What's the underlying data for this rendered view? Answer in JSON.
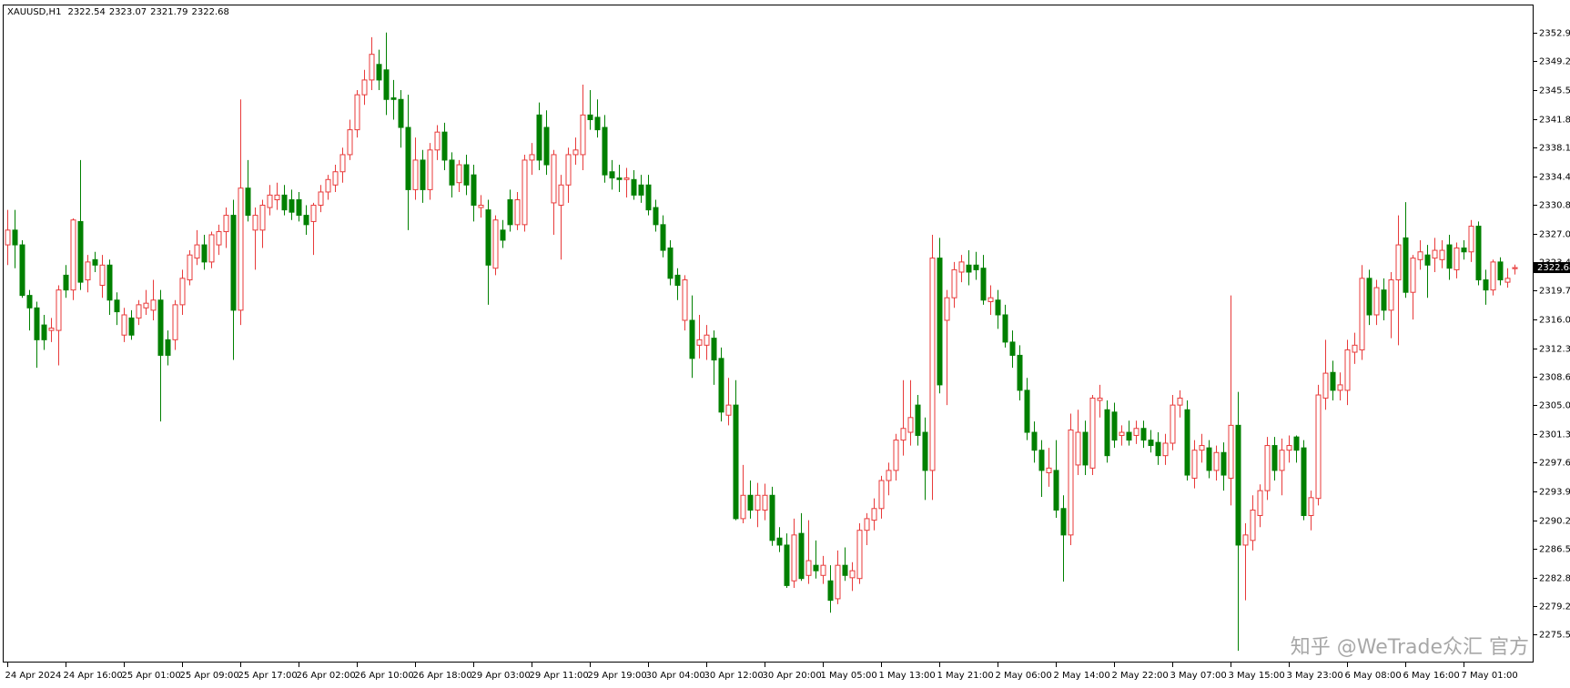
{
  "chart_data": {
    "type": "candlestick",
    "title": "XAUUSD,H1",
    "watermark": "知乎 @WeTrade众汇 官方",
    "up_color": "#e83a3a",
    "down_color": "#008000",
    "ylim": [
      2271.9,
      2356.5
    ],
    "yticks": [
      {
        "value": 2352.9,
        "label": "2352.90"
      },
      {
        "value": 2349.2,
        "label": "2349.20"
      },
      {
        "value": 2345.5,
        "label": "2345.50"
      },
      {
        "value": 2341.8,
        "label": "2341.80"
      },
      {
        "value": 2338.1,
        "label": "2338.10"
      },
      {
        "value": 2334.4,
        "label": "2334.40"
      },
      {
        "value": 2330.8,
        "label": "2330.80"
      },
      {
        "value": 2327.0,
        "label": "2327.00"
      },
      {
        "value": 2323.4,
        "label": "2323.40"
      },
      {
        "value": 2319.7,
        "label": "2319.70"
      },
      {
        "value": 2316.0,
        "label": "2316.00"
      },
      {
        "value": 2312.3,
        "label": "2312.30"
      },
      {
        "value": 2308.6,
        "label": "2308.60"
      },
      {
        "value": 2305.0,
        "label": "2305.00"
      },
      {
        "value": 2301.3,
        "label": "2301.30"
      },
      {
        "value": 2297.6,
        "label": "2297.60"
      },
      {
        "value": 2293.9,
        "label": "2293.90"
      },
      {
        "value": 2290.2,
        "label": "2290.20"
      },
      {
        "value": 2286.5,
        "label": "2286.50"
      },
      {
        "value": 2282.8,
        "label": "2282.80"
      },
      {
        "value": 2279.2,
        "label": "2279.20"
      },
      {
        "value": 2275.5,
        "label": "2275.50"
      }
    ],
    "categories": [
      "24 Apr 2024",
      null,
      null,
      null,
      null,
      null,
      null,
      null,
      "24 Apr 16:00",
      null,
      null,
      null,
      null,
      null,
      null,
      null,
      "25 Apr 01:00",
      null,
      null,
      null,
      null,
      null,
      null,
      null,
      "25 Apr 09:00",
      null,
      null,
      null,
      null,
      null,
      null,
      null,
      "25 Apr 17:00",
      null,
      null,
      null,
      null,
      null,
      null,
      null,
      "26 Apr 02:00",
      null,
      null,
      null,
      null,
      null,
      null,
      null,
      "26 Apr 10:00",
      null,
      null,
      null,
      null,
      null,
      null,
      null,
      "26 Apr 18:00",
      null,
      null,
      null,
      null,
      null,
      null,
      null,
      "29 Apr 03:00",
      null,
      null,
      null,
      null,
      null,
      null,
      null,
      "29 Apr 11:00",
      null,
      null,
      null,
      null,
      null,
      null,
      null,
      "29 Apr 19:00",
      null,
      null,
      null,
      null,
      null,
      null,
      null,
      "30 Apr 04:00",
      null,
      null,
      null,
      null,
      null,
      null,
      null,
      "30 Apr 12:00",
      null,
      null,
      null,
      null,
      null,
      null,
      null,
      "30 Apr 20:00",
      null,
      null,
      null,
      null,
      null,
      null,
      null,
      "1 May 05:00",
      null,
      null,
      null,
      null,
      null,
      null,
      null,
      "1 May 13:00",
      null,
      null,
      null,
      null,
      null,
      null,
      null,
      "1 May 21:00",
      null,
      null,
      null,
      null,
      null,
      null,
      null,
      "2 May 06:00",
      null,
      null,
      null,
      null,
      null,
      null,
      null,
      "2 May 14:00",
      null,
      null,
      null,
      null,
      null,
      null,
      null,
      "2 May 22:00",
      null,
      null,
      null,
      null,
      null,
      null,
      null,
      "3 May 07:00",
      null,
      null,
      null,
      null,
      null,
      null,
      null,
      "3 May 15:00",
      null,
      null,
      null,
      null,
      null,
      null,
      null,
      "3 May 23:00",
      null,
      null,
      null,
      null,
      null,
      null,
      null,
      "6 May 08:00",
      null,
      null,
      null,
      null,
      null,
      null,
      null,
      "6 May 16:00",
      null,
      null,
      null,
      null,
      null,
      null,
      null,
      "7 May 01:00",
      null,
      null,
      null,
      null,
      null,
      null,
      null
    ],
    "open": [
      2325.6,
      2327.5,
      2325.6,
      2319.1,
      2317.5,
      2315.3,
      2314.6,
      2314.6,
      2321.7,
      2319.8,
      2328.6,
      2321.1,
      2323.7,
      2320.4,
      2323.0,
      2318.5,
      2314.0,
      2316.2,
      2316.2,
      2317.5,
      2317.2,
      2318.5,
      2313.4,
      2313.4,
      2317.9,
      2321.1,
      2323.9,
      2325.6,
      2323.4,
      2325.6,
      2327.3,
      2329.4,
      2317.2,
      2332.9,
      2327.5,
      2327.5,
      2330.4,
      2331.4,
      2332.0,
      2331.4,
      2331.4,
      2329.4,
      2328.6,
      2330.7,
      2332.4,
      2333.3,
      2335.0,
      2337.2,
      2340.4,
      2344.9,
      2346.8,
      2348.8,
      2348.1,
      2344.5,
      2344.3,
      2340.7,
      2332.7,
      2336.5,
      2332.7,
      2337.8,
      2340.1,
      2336.5,
      2333.6,
      2335.9,
      2334.6,
      2330.4,
      2330.1,
      2322.6,
      2327.5,
      2331.4,
      2328.2,
      2328.2,
      2336.5,
      2342.3,
      2340.7,
      2331.0,
      2330.7,
      2333.3,
      2337.2,
      2337.2,
      2342.3,
      2342.0,
      2340.7,
      2335.0,
      2334.2,
      2334.0,
      2334.0,
      2333.3,
      2333.3,
      2330.4,
      2328.2,
      2325.2,
      2321.7,
      2315.9,
      2315.9,
      2312.7,
      2312.7,
      2313.6,
      2311.0,
      2303.7,
      2305.0,
      2290.4,
      2293.4,
      2291.5,
      2291.5,
      2293.4,
      2287.9,
      2287.0,
      2282.4,
      2288.5,
      2283.1,
      2284.4,
      2283.1,
      2282.4,
      2280.1,
      2284.4,
      2282.8,
      2282.7,
      2288.9,
      2290.2,
      2291.7,
      2295.3,
      2296.6,
      2300.5,
      2301.5,
      2305.0,
      2301.5,
      2296.6,
      2323.9,
      2315.9,
      2318.8,
      2322.1,
      2323.0,
      2323.0,
      2322.6,
      2318.3,
      2318.5,
      2316.6,
      2313.1,
      2311.4,
      2306.9,
      2301.5,
      2299.2,
      2296.3,
      2296.6,
      2291.7,
      2288.3,
      2297.3,
      2301.5,
      2296.9,
      2305.6,
      2304.4,
      2304.1,
      2301.1,
      2301.5,
      2301.1,
      2302.0,
      2300.5,
      2300.2,
      2298.5,
      2300.1,
      2305.0,
      2304.4,
      2295.6,
      2299.2,
      2299.5,
      2296.6,
      2298.9,
      2295.6,
      2302.4,
      2287.0,
      2287.6,
      2290.8,
      2294.0,
      2299.8,
      2296.6,
      2299.2,
      2300.9,
      2299.5,
      2290.8,
      2293.0,
      2305.9,
      2309.2,
      2306.9,
      2306.9,
      2311.8,
      2312.1,
      2321.3,
      2316.6,
      2319.8,
      2317.2,
      2321.1,
      2326.5,
      2319.5,
      2323.7,
      2324.3,
      2323.9,
      2323.7,
      2325.6,
      2322.4,
      2325.2,
      2324.7,
      2328.0,
      2321.1,
      2319.8,
      2323.4,
      2320.8,
      2322.54
    ],
    "high": [
      2330.1,
      2330.1,
      2326.2,
      2319.8,
      2318.3,
      2316.6,
      2316.2,
      2320.4,
      2323.0,
      2329.0,
      2336.5,
      2324.3,
      2324.7,
      2324.3,
      2323.7,
      2319.5,
      2317.5,
      2317.2,
      2318.5,
      2319.8,
      2321.1,
      2319.8,
      2314.6,
      2318.5,
      2322.4,
      2324.9,
      2327.5,
      2326.9,
      2327.3,
      2328.2,
      2330.4,
      2331.4,
      2344.3,
      2336.5,
      2330.4,
      2331.4,
      2333.3,
      2333.6,
      2333.3,
      2332.7,
      2332.4,
      2330.7,
      2331.0,
      2333.3,
      2334.6,
      2335.9,
      2338.1,
      2341.7,
      2345.5,
      2348.1,
      2352.3,
      2350.7,
      2352.9,
      2346.8,
      2345.5,
      2344.9,
      2339.4,
      2337.8,
      2338.7,
      2341.0,
      2341.3,
      2337.5,
      2336.5,
      2337.2,
      2335.9,
      2332.0,
      2331.4,
      2329.4,
      2328.8,
      2332.7,
      2332.4,
      2337.2,
      2338.7,
      2343.9,
      2342.9,
      2337.8,
      2334.6,
      2338.1,
      2339.4,
      2346.2,
      2345.5,
      2344.3,
      2342.3,
      2336.5,
      2335.9,
      2335.5,
      2335.2,
      2334.6,
      2334.6,
      2331.4,
      2329.4,
      2326.2,
      2322.6,
      2321.7,
      2319.1,
      2316.6,
      2315.3,
      2314.6,
      2312.4,
      2308.5,
      2308.2,
      2297.3,
      2295.3,
      2295.0,
      2294.9,
      2294.5,
      2289.3,
      2288.5,
      2290.4,
      2291.1,
      2290.2,
      2287.6,
      2285.6,
      2284.4,
      2286.3,
      2286.7,
      2284.8,
      2289.8,
      2291.1,
      2293.0,
      2295.9,
      2297.6,
      2301.3,
      2308.2,
      2308.2,
      2306.3,
      2303.4,
      2326.9,
      2326.5,
      2319.8,
      2323.4,
      2324.3,
      2324.9,
      2324.7,
      2324.3,
      2320.4,
      2319.8,
      2317.9,
      2314.6,
      2312.7,
      2308.5,
      2302.9,
      2300.5,
      2299.5,
      2300.5,
      2293.4,
      2303.9,
      2304.4,
      2303.0,
      2306.3,
      2307.6,
      2305.6,
      2305.3,
      2302.4,
      2303.0,
      2303.0,
      2303.0,
      2301.8,
      2301.5,
      2301.3,
      2306.3,
      2306.9,
      2305.6,
      2300.5,
      2301.3,
      2300.5,
      2299.8,
      2300.2,
      2319.1,
      2306.7,
      2289.8,
      2293.4,
      2294.8,
      2300.9,
      2300.9,
      2300.7,
      2301.1,
      2301.1,
      2300.5,
      2294.0,
      2307.6,
      2313.4,
      2310.7,
      2309.2,
      2313.4,
      2314.3,
      2323.0,
      2322.4,
      2321.1,
      2321.3,
      2322.1,
      2329.4,
      2331.1,
      2324.3,
      2326.2,
      2325.6,
      2326.5,
      2326.2,
      2326.9,
      2325.9,
      2326.2,
      2328.8,
      2328.6,
      2322.4,
      2323.7,
      2324.0,
      2322.6,
      2323.07
    ],
    "low": [
      2323.0,
      2322.6,
      2318.8,
      2314.6,
      2309.8,
      2312.1,
      2313.1,
      2310.1,
      2318.8,
      2318.5,
      2319.8,
      2319.5,
      2322.1,
      2318.8,
      2316.6,
      2315.3,
      2313.1,
      2313.4,
      2315.3,
      2316.6,
      2315.9,
      2302.9,
      2310.1,
      2312.1,
      2316.6,
      2320.4,
      2323.0,
      2322.4,
      2322.6,
      2324.3,
      2325.2,
      2310.8,
      2315.3,
      2328.6,
      2322.4,
      2325.2,
      2329.4,
      2330.1,
      2329.4,
      2328.8,
      2328.6,
      2326.9,
      2324.3,
      2329.8,
      2331.4,
      2332.4,
      2333.6,
      2336.5,
      2339.4,
      2343.6,
      2345.5,
      2345.5,
      2342.3,
      2341.7,
      2338.1,
      2327.5,
      2331.4,
      2331.0,
      2331.4,
      2336.5,
      2335.2,
      2331.7,
      2332.4,
      2332.0,
      2328.6,
      2329.1,
      2317.9,
      2321.7,
      2325.2,
      2327.3,
      2327.5,
      2327.3,
      2334.6,
      2335.2,
      2334.6,
      2326.9,
      2323.7,
      2331.0,
      2335.9,
      2335.2,
      2340.4,
      2339.4,
      2333.6,
      2332.7,
      2332.4,
      2331.7,
      2331.4,
      2331.0,
      2329.4,
      2327.3,
      2324.0,
      2320.4,
      2318.5,
      2314.6,
      2308.5,
      2311.0,
      2310.8,
      2307.6,
      2302.9,
      2302.4,
      2290.2,
      2289.8,
      2290.4,
      2289.3,
      2290.2,
      2286.9,
      2286.1,
      2281.5,
      2281.5,
      2282.4,
      2282.0,
      2282.7,
      2282.0,
      2278.3,
      2279.4,
      2282.4,
      2281.1,
      2282.0,
      2287.0,
      2288.9,
      2290.4,
      2293.4,
      2295.3,
      2298.5,
      2299.8,
      2299.8,
      2292.8,
      2292.8,
      2306.5,
      2305.0,
      2317.5,
      2320.8,
      2320.4,
      2321.1,
      2317.9,
      2316.6,
      2314.8,
      2312.4,
      2309.8,
      2305.6,
      2300.5,
      2297.6,
      2293.2,
      2294.5,
      2290.5,
      2282.3,
      2287.0,
      2296.0,
      2296.0,
      2296.0,
      2303.4,
      2297.6,
      2299.5,
      2299.8,
      2299.8,
      2300.0,
      2299.5,
      2298.9,
      2297.3,
      2297.3,
      2299.2,
      2303.4,
      2295.3,
      2294.3,
      2297.6,
      2295.6,
      2295.3,
      2294.0,
      2292.1,
      2273.4,
      2279.9,
      2286.3,
      2289.3,
      2292.8,
      2295.3,
      2293.4,
      2297.6,
      2297.6,
      2290.2,
      2288.9,
      2292.1,
      2304.4,
      2305.6,
      2305.6,
      2305.0,
      2310.3,
      2310.8,
      2315.3,
      2315.3,
      2315.9,
      2313.6,
      2312.7,
      2318.8,
      2316.0,
      2322.4,
      2318.8,
      2322.1,
      2322.6,
      2321.1,
      2321.3,
      2323.7,
      2323.4,
      2320.4,
      2317.9,
      2319.1,
      2320.4,
      2320.1,
      2321.79
    ],
    "close": [
      2327.5,
      2325.6,
      2319.1,
      2317.5,
      2313.4,
      2313.4,
      2314.9,
      2319.8,
      2319.8,
      2328.8,
      2320.8,
      2323.4,
      2323.0,
      2323.0,
      2318.5,
      2317.0,
      2316.6,
      2314.0,
      2317.9,
      2318.1,
      2318.5,
      2311.4,
      2311.4,
      2317.9,
      2321.3,
      2324.3,
      2325.6,
      2323.4,
      2326.9,
      2327.3,
      2329.4,
      2317.2,
      2332.9,
      2329.4,
      2329.4,
      2330.7,
      2332.0,
      2332.0,
      2330.1,
      2329.8,
      2329.4,
      2328.2,
      2330.7,
      2332.4,
      2334.0,
      2335.0,
      2337.2,
      2340.4,
      2344.9,
      2346.8,
      2350.1,
      2346.8,
      2344.3,
      2344.3,
      2340.7,
      2332.7,
      2336.5,
      2332.7,
      2337.8,
      2340.1,
      2336.5,
      2333.3,
      2335.9,
      2333.3,
      2330.7,
      2330.7,
      2323.0,
      2328.8,
      2326.2,
      2328.2,
      2331.4,
      2336.5,
      2337.2,
      2336.5,
      2335.9,
      2337.2,
      2333.3,
      2337.2,
      2337.8,
      2342.3,
      2341.7,
      2340.4,
      2334.6,
      2334.2,
      2334.0,
      2334.2,
      2332.0,
      2332.0,
      2330.1,
      2328.2,
      2324.9,
      2321.3,
      2320.4,
      2321.1,
      2311.0,
      2313.4,
      2314.0,
      2310.8,
      2304.1,
      2305.0,
      2290.4,
      2293.4,
      2291.5,
      2293.4,
      2293.4,
      2287.6,
      2287.0,
      2281.8,
      2288.3,
      2282.7,
      2285.0,
      2283.7,
      2284.4,
      2279.9,
      2284.4,
      2283.1,
      2283.7,
      2288.9,
      2290.4,
      2291.7,
      2295.3,
      2296.6,
      2300.5,
      2302.0,
      2303.4,
      2301.1,
      2296.6,
      2323.9,
      2307.6,
      2318.8,
      2322.4,
      2323.4,
      2322.1,
      2322.4,
      2318.5,
      2318.8,
      2316.6,
      2313.1,
      2311.4,
      2306.9,
      2301.5,
      2299.2,
      2296.6,
      2296.9,
      2291.5,
      2288.3,
      2301.8,
      2301.5,
      2297.3,
      2305.9,
      2305.9,
      2298.5,
      2300.5,
      2301.5,
      2300.5,
      2302.0,
      2300.5,
      2299.8,
      2298.5,
      2300.1,
      2305.0,
      2305.9,
      2296.0,
      2299.2,
      2299.8,
      2296.6,
      2298.9,
      2296.0,
      2302.4,
      2287.0,
      2288.3,
      2291.5,
      2294.0,
      2299.8,
      2296.6,
      2299.2,
      2299.8,
      2299.2,
      2290.8,
      2293.1,
      2306.3,
      2309.1,
      2306.9,
      2307.6,
      2312.1,
      2312.7,
      2321.3,
      2316.6,
      2320.1,
      2317.2,
      2321.1,
      2325.6,
      2319.5,
      2323.9,
      2324.7,
      2323.0,
      2324.9,
      2324.9,
      2322.6,
      2325.2,
      2324.7,
      2328.0,
      2321.1,
      2319.8,
      2323.4,
      2321.1,
      2321.3,
      2322.68
    ]
  }
}
